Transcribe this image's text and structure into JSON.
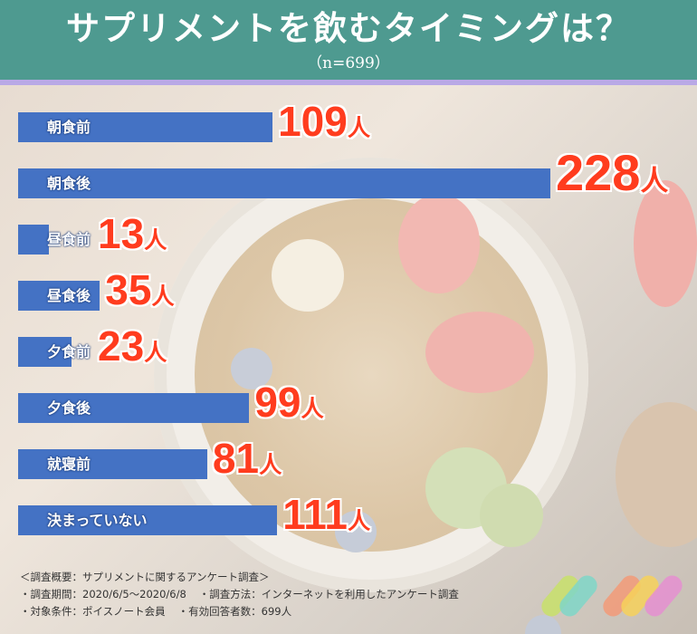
{
  "header": {
    "title": "サプリメントを飲むタイミングは？",
    "subtitle": "（n=699）"
  },
  "colors": {
    "header_bg": "#4e9a90",
    "accent_line": "#b9a9e6",
    "bar": "#4472c4",
    "value_text": "#ff3c1e"
  },
  "chart_data": {
    "type": "bar",
    "orientation": "horizontal",
    "title": "サプリメントを飲むタイミングは？",
    "subtitle": "（n=699）",
    "categories": [
      "朝食前",
      "朝食後",
      "昼食前",
      "昼食後",
      "夕食前",
      "夕食後",
      "就寝前",
      "決まっていない"
    ],
    "values": [
      109,
      228,
      13,
      35,
      23,
      99,
      81,
      111
    ],
    "unit": "人",
    "xlim": [
      0,
      228
    ],
    "grid": false,
    "legend": "none"
  },
  "footer": {
    "summary": "＜調査概要：サプリメントに関するアンケート調査＞",
    "period": "・調査期間：2020/6/5～2020/6/8",
    "method": "・調査方法：インターネットを利用したアンケート調査",
    "target": "・対象条件：ポイスノート会員",
    "responses": "・有効回答者数：699人"
  },
  "logo": {
    "icon": "brand-logo-icon"
  }
}
